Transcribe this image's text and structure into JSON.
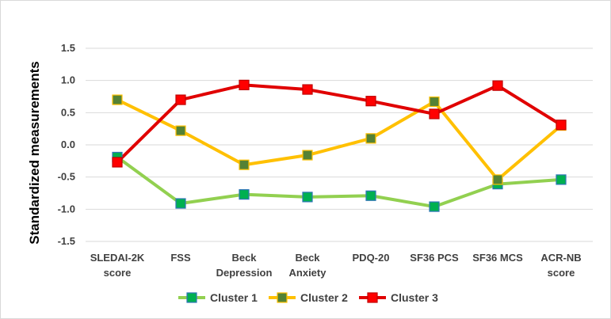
{
  "chart_data": {
    "type": "line",
    "title": "",
    "xlabel": "",
    "ylabel": "Standardized  measurements",
    "ylim": [
      -1.5,
      1.5
    ],
    "yticks": [
      "1.5",
      "1.0",
      "0.5",
      "0.0",
      "-0.5",
      "-1.0",
      "-1.5"
    ],
    "ytick_values": [
      1.5,
      1.0,
      0.5,
      0.0,
      -0.5,
      -1.0,
      -1.5
    ],
    "grid": true,
    "legend_position": "bottom",
    "categories": [
      [
        "SLEDAI-2K",
        "score"
      ],
      [
        "FSS"
      ],
      [
        "Beck",
        "Depression"
      ],
      [
        "Beck",
        "Anxiety"
      ],
      [
        "PDQ-20"
      ],
      [
        "SF36 PCS"
      ],
      [
        "SF36 MCS"
      ],
      [
        "ACR-NB",
        "score"
      ]
    ],
    "series": [
      {
        "name": "Cluster 1",
        "line_color": "#92d050",
        "marker_color": "#00b050",
        "marker_edge": "#2e75b6",
        "values": [
          -0.19,
          -0.91,
          -0.77,
          -0.81,
          -0.79,
          -0.96,
          -0.61,
          -0.54
        ]
      },
      {
        "name": "Cluster 2",
        "line_color": "#ffc000",
        "marker_color": "#548235",
        "marker_edge": "#ffc000",
        "values": [
          0.7,
          0.22,
          -0.31,
          -0.16,
          0.1,
          0.67,
          -0.54,
          0.3
        ]
      },
      {
        "name": "Cluster 3",
        "line_color": "#e00000",
        "marker_color": "#ff0000",
        "marker_edge": "#c00000",
        "values": [
          -0.27,
          0.7,
          0.93,
          0.86,
          0.68,
          0.48,
          0.92,
          0.31
        ]
      }
    ]
  }
}
